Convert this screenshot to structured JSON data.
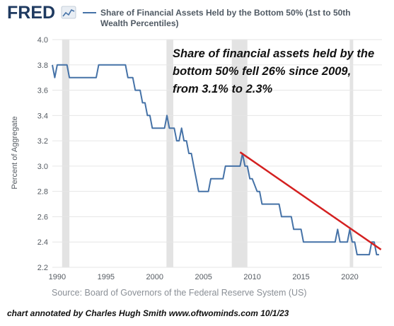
{
  "logo": {
    "text": "FRED"
  },
  "chart_data": {
    "type": "line",
    "title": "Share of Financial Assets Held by the Bottom 50% (1st to 50th Wealth Percentiles)",
    "title_lines": [
      "Share of Financial Assets Held by the Bottom 50% (1st to 50th",
      "Wealth Percentiles)"
    ],
    "ylabel": "Percent of Aggregate",
    "xlabel": "",
    "xlim": [
      1989.5,
      2023.3
    ],
    "ylim": [
      2.2,
      4.0
    ],
    "y_ticks": [
      2.2,
      2.4,
      2.6,
      2.8,
      3.0,
      3.2,
      3.4,
      3.6,
      3.8,
      4.0
    ],
    "y_tick_labels": [
      "2.2",
      "2.4",
      "2.6",
      "2.8",
      "3.0",
      "3.2",
      "3.4",
      "3.6",
      "3.8",
      "4.0"
    ],
    "x_ticks": [
      1990,
      1995,
      2000,
      2005,
      2010,
      2015,
      2020
    ],
    "x_tick_labels": [
      "1990",
      "1995",
      "2000",
      "2005",
      "2010",
      "2015",
      "2020"
    ],
    "grid": "horizontal",
    "legend": "top",
    "line_color": "#4572a7",
    "recessions": [
      [
        1990.5,
        1991.25
      ],
      [
        2001.2,
        2001.9
      ],
      [
        2007.9,
        2009.5
      ],
      [
        2020.0,
        2020.35
      ]
    ],
    "series": [
      {
        "name": "Share of Financial Assets Held by the Bottom 50% (1st to 50th Wealth Percentiles)",
        "x": [
          1989.5,
          1989.75,
          1990.0,
          1990.25,
          1991.0,
          1991.25,
          1994.0,
          1994.25,
          1997.0,
          1997.25,
          1997.75,
          1998.0,
          1998.5,
          1998.75,
          1999.0,
          1999.25,
          1999.5,
          1999.75,
          2000.25,
          2000.5,
          2001.0,
          2001.25,
          2001.5,
          2002.0,
          2002.25,
          2002.5,
          2002.75,
          2003.0,
          2003.25,
          2003.5,
          2003.75,
          2004.0,
          2004.25,
          2004.5,
          2004.75,
          2005.5,
          2005.75,
          2006.75,
          2007.0,
          2007.25,
          2008.75,
          2009.0,
          2009.25,
          2009.5,
          2009.75,
          2010.0,
          2010.5,
          2010.75,
          2011.0,
          2011.25,
          2012.75,
          2013.0,
          2014.0,
          2014.25,
          2015.0,
          2015.25,
          2018.5,
          2018.75,
          2019.0,
          2019.25,
          2019.75,
          2020.0,
          2020.25,
          2020.5,
          2020.75,
          2022.0,
          2022.25,
          2022.5,
          2022.75,
          2023.0
        ],
        "values": [
          3.8,
          3.7,
          3.8,
          3.8,
          3.8,
          3.7,
          3.7,
          3.8,
          3.8,
          3.7,
          3.7,
          3.6,
          3.6,
          3.5,
          3.5,
          3.4,
          3.4,
          3.3,
          3.3,
          3.3,
          3.3,
          3.4,
          3.3,
          3.3,
          3.2,
          3.2,
          3.3,
          3.2,
          3.2,
          3.1,
          3.1,
          3.0,
          2.9,
          2.8,
          2.8,
          2.8,
          2.9,
          2.9,
          2.9,
          3.0,
          3.0,
          3.1,
          3.0,
          3.0,
          2.9,
          2.9,
          2.8,
          2.8,
          2.7,
          2.7,
          2.7,
          2.6,
          2.6,
          2.5,
          2.5,
          2.4,
          2.4,
          2.5,
          2.4,
          2.4,
          2.4,
          2.5,
          2.4,
          2.4,
          2.3,
          2.3,
          2.4,
          2.4,
          2.3,
          2.3
        ]
      }
    ],
    "trendline": {
      "color": "#d42020",
      "from": [
        2008.75,
        3.11
      ],
      "to": [
        2023.2,
        2.34
      ]
    },
    "annotation": [
      "Share of financial assets held by the",
      "bottom 50% fell 26% since 2009,",
      "from 3.1% to 2.3%"
    ]
  },
  "source": "Source: Board of Governors of the Federal Reserve System (US)",
  "credit": "chart annotated by  Charles Hugh Smith   www.oftwominds.com  10/1/23"
}
